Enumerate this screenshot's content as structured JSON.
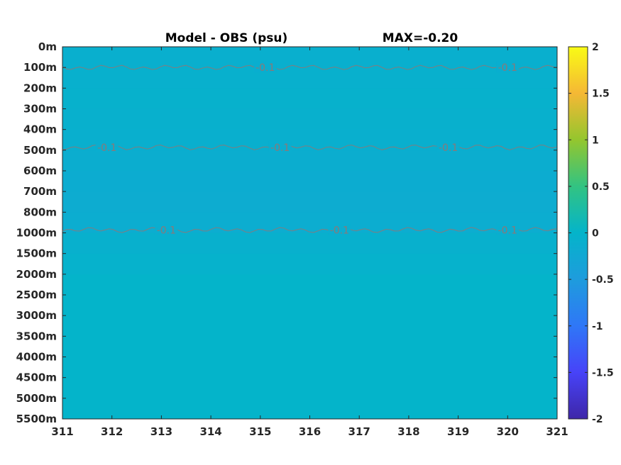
{
  "chart_data": {
    "type": "heatmap",
    "title_left": "Model - OBS (psu)",
    "title_right": "MAX=-0.20",
    "xlabel": "",
    "ylabel": "",
    "x_ticks": [
      "311",
      "312",
      "313",
      "314",
      "315",
      "316",
      "317",
      "318",
      "319",
      "320",
      "321"
    ],
    "xlim": [
      311,
      321
    ],
    "y_ticks": [
      "0m",
      "100m",
      "200m",
      "300m",
      "400m",
      "500m",
      "600m",
      "700m",
      "800m",
      "1000m",
      "1500m",
      "2000m",
      "2500m",
      "3000m",
      "3500m",
      "4000m",
      "4500m",
      "5000m",
      "5500m"
    ],
    "depth_bands": [
      {
        "from": "0m",
        "to": "100m",
        "value": -0.1
      },
      {
        "from": "100m",
        "to": "200m",
        "value": -0.08
      },
      {
        "from": "200m",
        "to": "300m",
        "value": -0.06
      },
      {
        "from": "300m",
        "to": "400m",
        "value": -0.08
      },
      {
        "from": "400m",
        "to": "500m",
        "value": -0.1
      },
      {
        "from": "500m",
        "to": "600m",
        "value": -0.14
      },
      {
        "from": "600m",
        "to": "700m",
        "value": -0.16
      },
      {
        "from": "700m",
        "to": "800m",
        "value": -0.17
      },
      {
        "from": "800m",
        "to": "1000m",
        "value": -0.15
      },
      {
        "from": "1000m",
        "to": "1500m",
        "value": -0.08
      },
      {
        "from": "1500m",
        "to": "2000m",
        "value": -0.04
      },
      {
        "from": "2000m",
        "to": "5500m",
        "value": 0.0
      }
    ],
    "contours": [
      {
        "level": "-0.1",
        "depth": "100m",
        "label_x": [
          315.1,
          320.0
        ]
      },
      {
        "level": "-0.1",
        "depth": "500m",
        "label_x": [
          311.9,
          315.4,
          318.8
        ]
      },
      {
        "level": "-0.1",
        "depth": "1000m",
        "label_x": [
          313.1,
          316.6,
          320.0
        ]
      }
    ],
    "colorbar": {
      "range": [
        -2,
        2
      ],
      "ticks": [
        "2",
        "1.5",
        "1",
        "0.5",
        "0",
        "-0.5",
        "-1",
        "-1.5",
        "-2"
      ],
      "colormap": "parula"
    },
    "colors": {
      "near_zero": "#14b9ad",
      "deep_negative": "#0db2c6",
      "contour": "#a0706a"
    }
  }
}
